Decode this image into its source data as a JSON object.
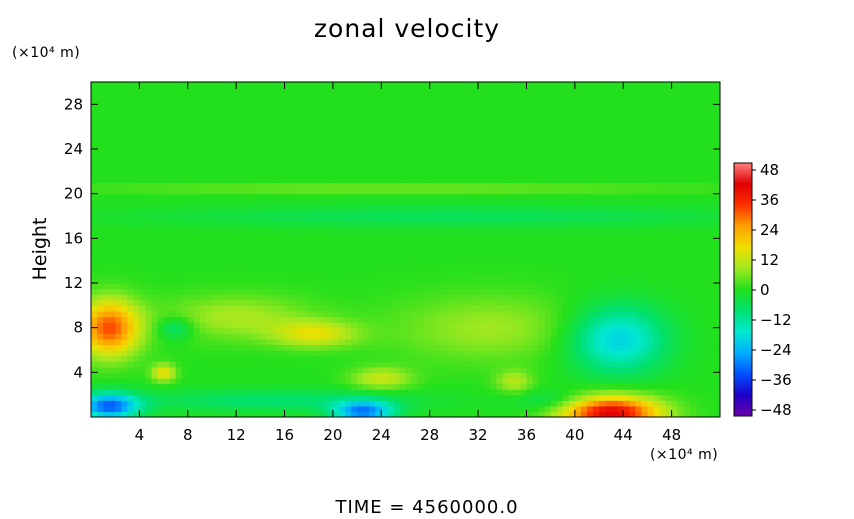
{
  "chart_data": {
    "type": "heatmap",
    "title": "zonal velocity",
    "xlabel": "",
    "ylabel": "Height",
    "x_unit": "(×10⁴ m)",
    "y_unit": "(×10⁴ m)",
    "xlim": [
      0,
      52
    ],
    "ylim": [
      0,
      30
    ],
    "xticks": [
      "4",
      "8",
      "12",
      "16",
      "20",
      "24",
      "28",
      "32",
      "36",
      "40",
      "44",
      "48"
    ],
    "yticks": [
      "4",
      "8",
      "12",
      "16",
      "20",
      "24",
      "28"
    ],
    "colorbar": {
      "ticks": [
        "48",
        "36",
        "24",
        "12",
        "0",
        "−12",
        "−24",
        "−36",
        "−48"
      ],
      "range": [
        -48,
        48
      ]
    },
    "colorscale": [
      "#6a00a8",
      "#1d00c8",
      "#0050ff",
      "#00b0ff",
      "#00e8d0",
      "#00e070",
      "#22e01c",
      "#a0e820",
      "#f0e000",
      "#ffa000",
      "#ff3000",
      "#e00000",
      "#ff8080"
    ],
    "blobs": [
      {
        "x": 43.5,
        "y": 7,
        "value": -20,
        "rx": 4,
        "ry": 3
      },
      {
        "x": 43,
        "y": 0.4,
        "value": 40,
        "rx": 4,
        "ry": 1.5
      },
      {
        "x": 1.5,
        "y": 8,
        "value": 30,
        "rx": 2.5,
        "ry": 2.5
      },
      {
        "x": 1.5,
        "y": 1,
        "value": -30,
        "rx": 2.5,
        "ry": 1.2
      },
      {
        "x": 22.5,
        "y": 0.5,
        "value": -28,
        "rx": 2.5,
        "ry": 1
      },
      {
        "x": 18.5,
        "y": 7.5,
        "value": 14,
        "rx": 3.5,
        "ry": 1.2
      },
      {
        "x": 6,
        "y": 4,
        "value": 16,
        "rx": 1,
        "ry": 0.8
      },
      {
        "x": 24,
        "y": 3.5,
        "value": 12,
        "rx": 2.5,
        "ry": 1
      },
      {
        "x": 35,
        "y": 3.2,
        "value": 10,
        "rx": 1.5,
        "ry": 1
      },
      {
        "x": 7,
        "y": 8,
        "value": -10,
        "rx": 1.5,
        "ry": 1
      },
      {
        "x": 30,
        "y": 18,
        "value": -6,
        "rx": 26,
        "ry": 1
      },
      {
        "x": 25,
        "y": 20.5,
        "value": 6,
        "rx": 26,
        "ry": 0.4
      },
      {
        "x": 33,
        "y": 8,
        "value": 8,
        "rx": 8,
        "ry": 3
      },
      {
        "x": 12,
        "y": 9,
        "value": 9,
        "rx": 6,
        "ry": 2
      },
      {
        "x": 15,
        "y": 1.5,
        "value": -8,
        "rx": 12,
        "ry": 1
      },
      {
        "x": 38,
        "y": 1.5,
        "value": -6,
        "rx": 3,
        "ry": 1
      }
    ],
    "time_label": "TIME  =  4560000.0"
  }
}
